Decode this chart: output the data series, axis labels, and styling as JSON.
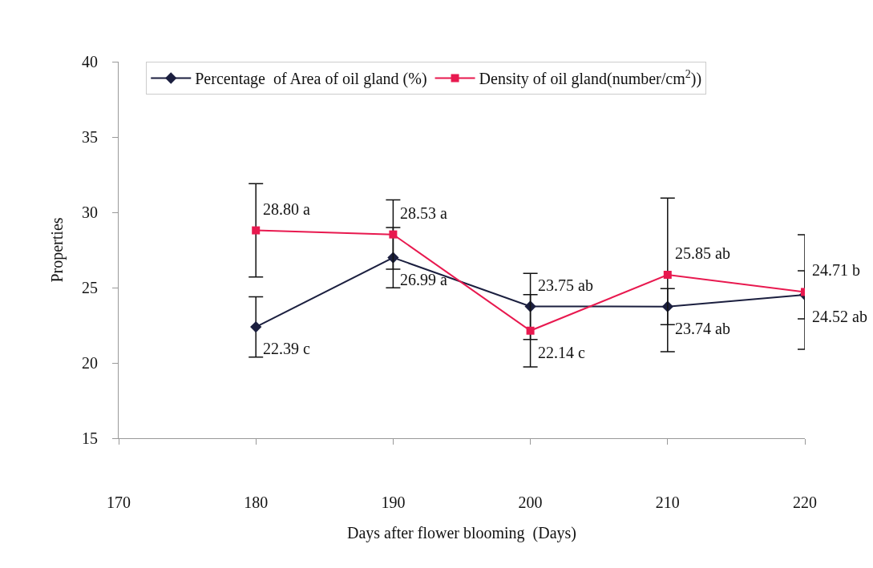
{
  "chart_data": {
    "type": "line",
    "xlabel": "Days after flower blooming  (Days)",
    "ylabel": "Properties",
    "x": [
      180,
      190,
      200,
      210,
      220
    ],
    "series": [
      {
        "name": "Percentage  of Area of oil gland (%)",
        "color": "#1b1f3f",
        "marker": "diamond",
        "values": [
          22.39,
          26.99,
          23.75,
          23.74,
          24.52
        ],
        "errors": [
          2.0,
          2.0,
          2.2,
          1.2,
          1.6
        ]
      },
      {
        "name": "Density of oil gland(number/cm$^{2}$))",
        "color": "#e8194f",
        "marker": "square",
        "values": [
          28.8,
          28.53,
          22.14,
          25.85,
          24.71
        ],
        "errors": [
          3.1,
          2.3,
          2.4,
          5.1,
          3.8
        ]
      }
    ],
    "annotations": [
      {
        "text": "28.80 a",
        "x": 180,
        "y": 28.8
      },
      {
        "text": "22.39 c",
        "x": 180,
        "y": 22.39
      },
      {
        "text": "28.53 a",
        "x": 190,
        "y": 28.53
      },
      {
        "text": "26.99 a",
        "x": 190,
        "y": 26.99
      },
      {
        "text": "23.75 ab",
        "x": 200,
        "y": 23.75
      },
      {
        "text": "22.14 c",
        "x": 200,
        "y": 22.14
      },
      {
        "text": "25.85 ab",
        "x": 210,
        "y": 25.85
      },
      {
        "text": "23.74 ab",
        "x": 210,
        "y": 23.74
      },
      {
        "text": "24.71 b",
        "x": 220,
        "y": 24.71
      },
      {
        "text": "24.52 ab",
        "x": 220,
        "y": 24.52
      }
    ],
    "xlim": [
      170,
      220
    ],
    "xticks": [
      170,
      180,
      190,
      200,
      210,
      220
    ],
    "ylim": [
      15,
      40
    ],
    "yticks": [
      15,
      20,
      25,
      30,
      35,
      40
    ],
    "grid": false,
    "legend": "top",
    "line_style": "solid"
  }
}
